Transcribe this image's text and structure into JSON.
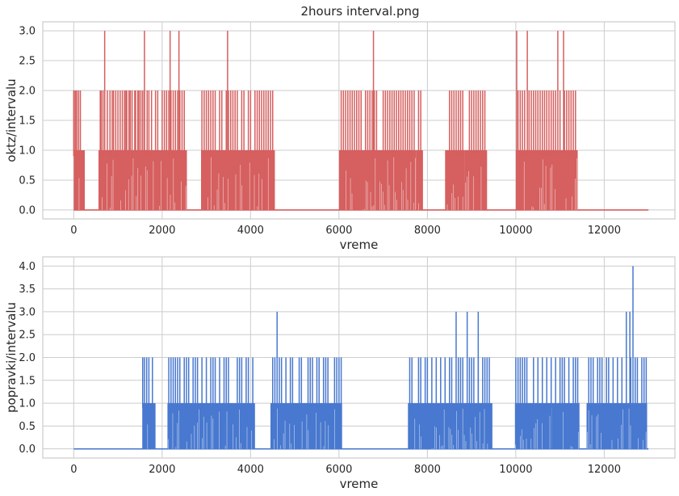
{
  "figure_title": "2hours interval.png",
  "chart_data": [
    {
      "type": "line",
      "title": "2hours interval.png",
      "xlabel": "vreme",
      "ylabel": "oktz/intervalu",
      "xlim": [
        -700,
        13600
      ],
      "ylim": [
        -0.15,
        3.15
      ],
      "xticks": [
        0,
        2000,
        4000,
        6000,
        8000,
        10000,
        12000
      ],
      "yticks": [
        0.0,
        0.5,
        1.0,
        1.5,
        2.0,
        2.5,
        3.0
      ],
      "grid": true,
      "color": "#d65f5f",
      "series": [
        {
          "active_ranges": [
            [
              0,
              250
            ],
            [
              560,
              2560
            ],
            [
              2880,
              4550
            ],
            [
              6000,
              7750
            ],
            [
              7750,
              7900
            ],
            [
              8400,
              8850
            ],
            [
              8850,
              9350
            ],
            [
              10000,
              11400
            ]
          ],
          "peaks_2": [
            0,
            10,
            40,
            70,
            110,
            150,
            600,
            620,
            660,
            700,
            760,
            820,
            870,
            900,
            950,
            1000,
            1050,
            1100,
            1150,
            1180,
            1200,
            1250,
            1280,
            1320,
            1380,
            1400,
            1450,
            1480,
            1520,
            1560,
            1600,
            1660,
            1700,
            1760,
            1850,
            1900,
            2000,
            2050,
            2100,
            2150,
            2200,
            2250,
            2300,
            2350,
            2400,
            2450,
            2500,
            2900,
            2950,
            3000,
            3050,
            3100,
            3150,
            3200,
            3300,
            3350,
            3450,
            3500,
            3550,
            3600,
            3650,
            3700,
            3800,
            3850,
            3950,
            4000,
            4100,
            4150,
            4200,
            4250,
            4300,
            4350,
            4400,
            4450,
            4500,
            6050,
            6100,
            6150,
            6200,
            6250,
            6300,
            6350,
            6400,
            6450,
            6500,
            6600,
            6650,
            6700,
            6750,
            6800,
            6850,
            7000,
            7050,
            7100,
            7150,
            7200,
            7250,
            7300,
            7350,
            7400,
            7450,
            7500,
            7550,
            7600,
            7650,
            7700,
            7800,
            7850,
            8500,
            8550,
            8600,
            8650,
            8700,
            8750,
            8800,
            8950,
            9000,
            9050,
            9100,
            9150,
            9200,
            9250,
            9300,
            10050,
            10100,
            10150,
            10200,
            10300,
            10350,
            10400,
            10450,
            10500,
            10550,
            10600,
            10650,
            10700,
            10750,
            10800,
            10850,
            10900,
            11000,
            11100,
            11150,
            11200,
            11250,
            11300,
            11350
          ],
          "peaks_3": [
            700,
            1600,
            2180,
            2380,
            3480,
            6780,
            10020,
            10260,
            10950,
            11080
          ]
        }
      ]
    },
    {
      "type": "line",
      "title": "",
      "xlabel": "vreme",
      "ylabel": "popravki/intervalu",
      "xlim": [
        -700,
        13600
      ],
      "ylim": [
        -0.2,
        4.2
      ],
      "xticks": [
        0,
        2000,
        4000,
        6000,
        8000,
        10000,
        12000
      ],
      "yticks": [
        0.0,
        0.5,
        1.0,
        1.5,
        2.0,
        2.5,
        3.0,
        3.5,
        4.0
      ],
      "grid": true,
      "color": "#4878cf",
      "series": [
        {
          "active_ranges": [
            [
              1550,
              1850
            ],
            [
              2120,
              4100
            ],
            [
              4450,
              6070
            ],
            [
              7560,
              9470
            ],
            [
              9980,
              10440
            ],
            [
              10440,
              10810
            ],
            [
              10810,
              11440
            ],
            [
              11600,
              12970
            ]
          ],
          "peaks_2": [
            1560,
            1600,
            1650,
            1700,
            1780,
            2150,
            2200,
            2250,
            2300,
            2350,
            2400,
            2500,
            2550,
            2600,
            2700,
            2750,
            2800,
            2900,
            3000,
            3100,
            3150,
            3200,
            3300,
            3400,
            3450,
            3500,
            3700,
            3750,
            3800,
            3900,
            3950,
            4050,
            4500,
            4550,
            4650,
            4700,
            4800,
            4900,
            4950,
            5100,
            5150,
            5300,
            5350,
            5400,
            5500,
            5550,
            5650,
            5700,
            5750,
            5900,
            5950,
            6000,
            6050,
            7600,
            7650,
            7800,
            7850,
            7950,
            8000,
            8100,
            8200,
            8300,
            8400,
            8500,
            8550,
            8700,
            8750,
            8800,
            8950,
            9000,
            9050,
            9150,
            9250,
            9300,
            9350,
            9400,
            10000,
            10050,
            10100,
            10150,
            10200,
            10250,
            10400,
            10500,
            10600,
            10700,
            10800,
            10900,
            11000,
            11050,
            11100,
            11200,
            11300,
            11350,
            11400,
            11650,
            11700,
            11750,
            11850,
            11900,
            11950,
            12050,
            12100,
            12200,
            12300,
            12400,
            12600,
            12700,
            12750,
            12850,
            12900,
            12950
          ],
          "peaks_3": [
            4600,
            8650,
            8900,
            9150,
            12500,
            12580
          ],
          "peaks_4": [
            12650
          ]
        }
      ]
    }
  ]
}
